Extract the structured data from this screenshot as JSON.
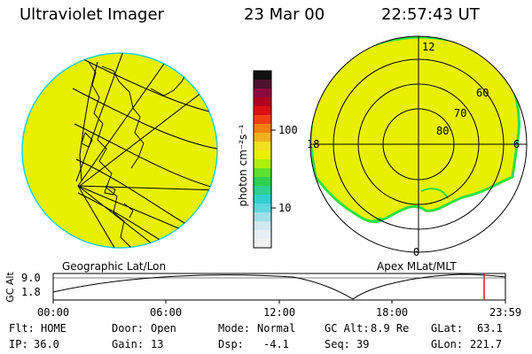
{
  "header": {
    "instrument": "Ultraviolet Imager",
    "date": "23 Mar 00",
    "time": "22:57:43 UT"
  },
  "colorbar": {
    "unit_label": "photon cm⁻²s⁻¹",
    "ticks": [
      "100",
      "10"
    ]
  },
  "left_panel": {
    "caption": "Geographic Lat/Lon"
  },
  "right_panel": {
    "caption": "Apex MLat/MLT",
    "mlt_labels": [
      "12",
      "18",
      "6",
      "0"
    ],
    "lat_labels": [
      "60",
      "70",
      "80"
    ]
  },
  "orbit_plot": {
    "ylabel": "GC Alt",
    "y_ticks": [
      "9.0",
      "1.8"
    ],
    "x_ticks": [
      "00:00",
      "06:00",
      "12:00",
      "18:00",
      "23:59"
    ]
  },
  "status": {
    "flt_label": "Flt:",
    "flt_value": "HOME",
    "ip_label": "IP:",
    "ip_value": "36.0",
    "door_label": "Door:",
    "door_value": "Open",
    "gain_label": "Gain:",
    "gain_value": "13",
    "mode_label": "Mode:",
    "mode_value": "Normal",
    "dsp_label": "Dsp:",
    "dsp_value": "-4.1",
    "gcalt_label": "GC Alt:",
    "gcalt_value": "8.9 Re",
    "seq_label": "Seq:",
    "seq_value": "39",
    "glat_label": "GLat:",
    "glat_value": "63.1",
    "glon_label": "GLon:",
    "glon_value": "221.7"
  },
  "colors": {
    "image_fill": "#e8f000",
    "image_edge": "#1fd0e0",
    "spot_green": "#2ee040",
    "marker": "#d02020"
  }
}
